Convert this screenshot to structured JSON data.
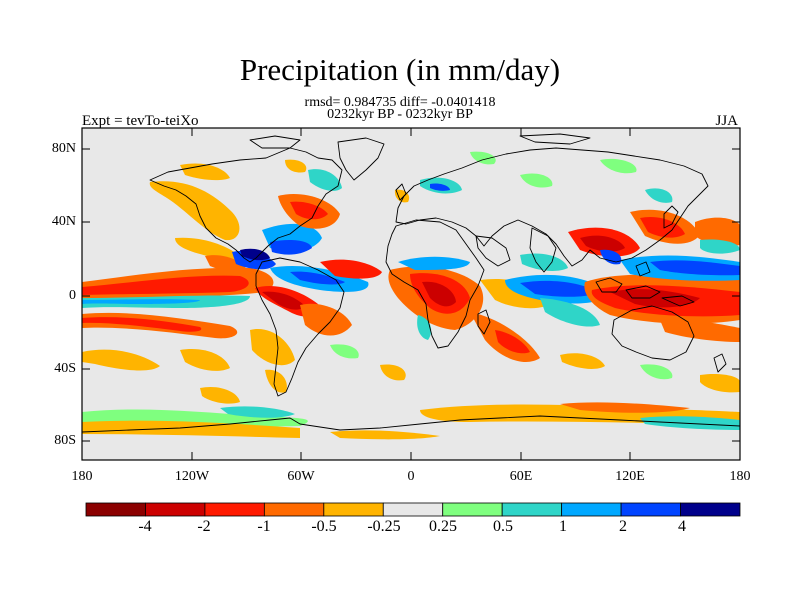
{
  "header": {
    "title": "Precipitation (in mm/day)",
    "stats": "rmsd= 0.984735 diff= -0.0401418",
    "period": "0232kyr BP - 0232kyr BP",
    "experiment": "Expt = tevTo-teiXo",
    "season": "JJA"
  },
  "axes": {
    "lat_ticks": [
      "80N",
      "40N",
      "0",
      "40S",
      "80S"
    ],
    "lon_ticks": [
      "180",
      "120W",
      "60W",
      "0",
      "60E",
      "120E",
      "180"
    ]
  },
  "colorbar": {
    "labels": [
      "-4",
      "-2",
      "-1",
      "-0.5",
      "-0.25",
      "0.25",
      "0.5",
      "1",
      "2",
      "4"
    ],
    "colors": [
      "#8b0000",
      "#cc0000",
      "#ff1a00",
      "#ff6a00",
      "#ffb400",
      "#e8e8e8",
      "#7fff7f",
      "#2fd5c8",
      "#00a8ff",
      "#0044ff",
      "#00008b"
    ]
  }
}
